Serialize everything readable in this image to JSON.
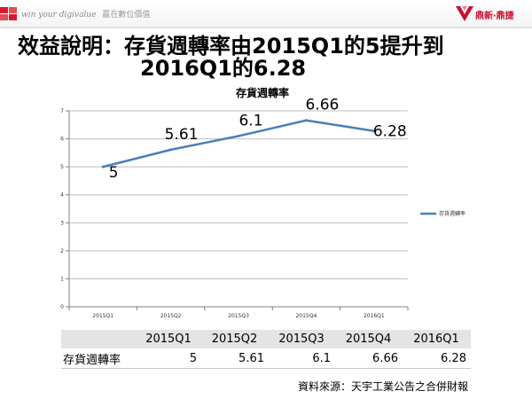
{
  "header": {
    "tagline_en": "win your digivalue",
    "tagline_zh": "贏在數位價值",
    "brand_name": "鼎新‧鼎捷"
  },
  "slide": {
    "title_line1": "效益說明：存貨週轉率由2015Q1的5提升到",
    "title_line2": "2016Q1的6.28"
  },
  "colors": {
    "series": "#4a7ebb",
    "brand": "#c8102e"
  },
  "chart_data": {
    "type": "line",
    "title": "存貨週轉率",
    "categories": [
      "2015Q1",
      "2015Q2",
      "2015Q3",
      "2015Q4",
      "2016Q1"
    ],
    "series": [
      {
        "name": "存貨週轉率",
        "values": [
          5,
          5.61,
          6.1,
          6.66,
          6.28
        ]
      }
    ],
    "data_labels": [
      "5",
      "5.61",
      "6.1",
      "6.66",
      "6.28"
    ],
    "ylim": [
      0,
      7
    ],
    "yticks": [
      "0",
      "1",
      "2",
      "3",
      "4",
      "5",
      "6",
      "7"
    ],
    "xlabel": "",
    "ylabel": "",
    "legend": "right",
    "grid": true
  },
  "table": {
    "headers": [
      "",
      "2015Q1",
      "2015Q2",
      "2015Q3",
      "2015Q4",
      "2016Q1"
    ],
    "rows": [
      {
        "label": "存貨週轉率",
        "values": [
          "5",
          "5.61",
          "6.1",
          "6.66",
          "6.28"
        ]
      }
    ]
  },
  "source": "資料來源：天宇工業公告之合併財報"
}
